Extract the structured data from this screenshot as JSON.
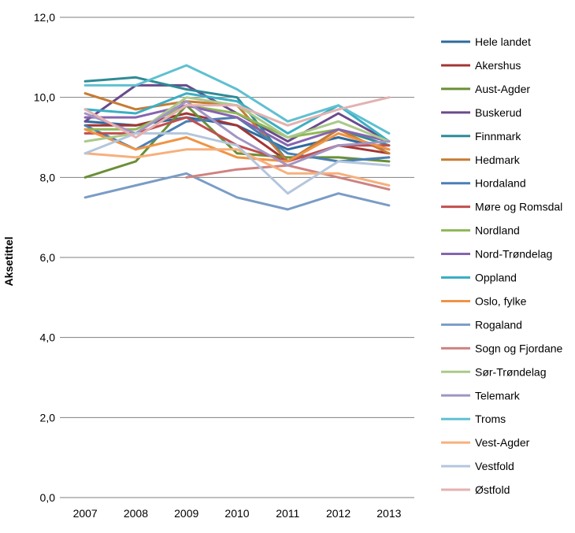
{
  "chart_data": {
    "type": "line",
    "title": "",
    "xlabel": "",
    "ylabel": "Aksetittel",
    "x": [
      "2007",
      "2008",
      "2009",
      "2010",
      "2011",
      "2012",
      "2013"
    ],
    "ylim": [
      0,
      12
    ],
    "yticks": [
      "0,0",
      "2,0",
      "4,0",
      "6,0",
      "8,0",
      "10,0",
      "12,0"
    ],
    "grid": true,
    "legend": "right",
    "series": [
      {
        "name": "Hele landet",
        "color": "#2e6a9e",
        "values": [
          9.4,
          9.3,
          9.5,
          9.3,
          8.7,
          9.0,
          8.7
        ]
      },
      {
        "name": "Akershus",
        "color": "#a33535",
        "values": [
          9.3,
          9.3,
          9.6,
          9.3,
          8.4,
          8.8,
          8.6
        ]
      },
      {
        "name": "Aust-Agder",
        "color": "#6a8f35",
        "values": [
          8.0,
          8.4,
          9.8,
          8.6,
          8.5,
          8.5,
          8.4
        ]
      },
      {
        "name": "Buskerud",
        "color": "#6a4a8c",
        "values": [
          9.4,
          10.3,
          10.3,
          9.6,
          8.9,
          9.6,
          8.9
        ]
      },
      {
        "name": "Finnmark",
        "color": "#2e8b95",
        "values": [
          10.4,
          10.5,
          10.2,
          10.0,
          8.4,
          9.2,
          8.8
        ]
      },
      {
        "name": "Hedmark",
        "color": "#c77b34",
        "values": [
          10.1,
          9.7,
          9.9,
          9.8,
          8.4,
          9.2,
          8.6
        ]
      },
      {
        "name": "Hordaland",
        "color": "#4a7fb5",
        "values": [
          9.3,
          8.7,
          9.4,
          9.5,
          8.6,
          8.4,
          8.5
        ]
      },
      {
        "name": "Møre og Romsdal",
        "color": "#c14f4f",
        "values": [
          9.1,
          9.1,
          9.5,
          8.8,
          8.4,
          8.8,
          8.8
        ]
      },
      {
        "name": "Nordland",
        "color": "#8fb856",
        "values": [
          9.2,
          9.2,
          9.8,
          9.6,
          9.0,
          9.2,
          8.9
        ]
      },
      {
        "name": "Nord-Trøndelag",
        "color": "#8664b0",
        "values": [
          9.5,
          9.5,
          9.8,
          9.5,
          8.8,
          9.2,
          8.9
        ]
      },
      {
        "name": "Oppland",
        "color": "#3aafc4",
        "values": [
          9.7,
          9.6,
          10.1,
          9.9,
          9.1,
          9.8,
          8.9
        ]
      },
      {
        "name": "Oslo, fylke",
        "color": "#ef9444",
        "values": [
          9.2,
          8.7,
          9.0,
          8.5,
          8.4,
          9.1,
          8.7
        ]
      },
      {
        "name": "Rogaland",
        "color": "#7a9cc6",
        "values": [
          7.5,
          7.8,
          8.1,
          7.5,
          7.2,
          7.6,
          7.3
        ]
      },
      {
        "name": "Sogn og Fjordane",
        "color": "#cf8280",
        "values": [
          null,
          null,
          8.0,
          8.2,
          8.3,
          8.0,
          7.7
        ]
      },
      {
        "name": "Sør-Trøndelag",
        "color": "#abc98a",
        "values": [
          8.9,
          9.1,
          10.0,
          9.8,
          9.0,
          9.4,
          8.9
        ]
      },
      {
        "name": "Telemark",
        "color": "#a295c3",
        "values": [
          9.6,
          9.1,
          9.9,
          9.0,
          8.3,
          8.8,
          8.9
        ]
      },
      {
        "name": "Troms",
        "color": "#5fc0d0",
        "values": [
          10.3,
          10.3,
          10.8,
          10.2,
          9.4,
          9.8,
          9.1
        ]
      },
      {
        "name": "Vest-Agder",
        "color": "#f6b07e",
        "values": [
          8.6,
          8.5,
          8.7,
          8.7,
          8.1,
          8.1,
          7.8
        ]
      },
      {
        "name": "Vestfold",
        "color": "#b4c6dd",
        "values": [
          8.6,
          9.1,
          9.1,
          8.8,
          7.6,
          8.4,
          8.3
        ]
      },
      {
        "name": "Østfold",
        "color": "#e3b2b1",
        "values": [
          9.7,
          9.0,
          9.8,
          9.8,
          9.3,
          9.7,
          10.0
        ]
      }
    ]
  }
}
